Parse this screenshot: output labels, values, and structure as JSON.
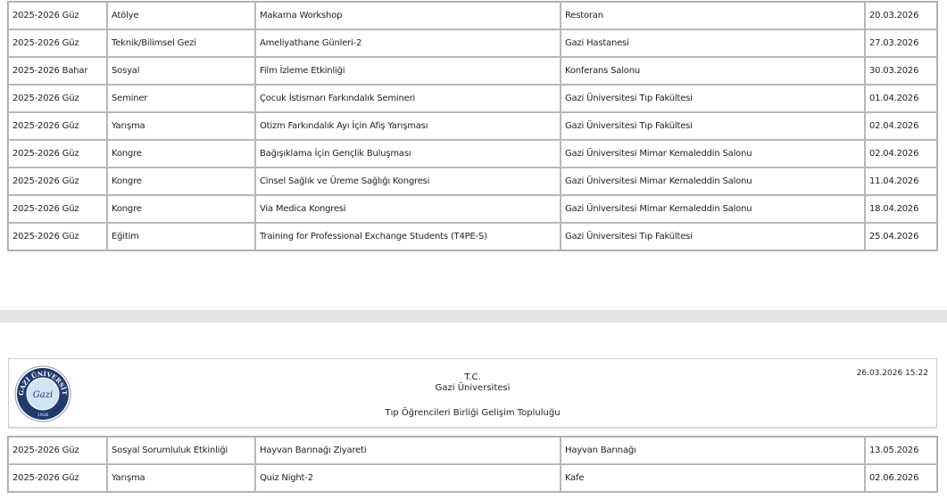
{
  "table1": {
    "rows": [
      [
        "2025-2026 Güz",
        "Atölye",
        "Makarna Workshop",
        "Restoran",
        "20.03.2026"
      ],
      [
        "2025-2026 Güz",
        "Teknik/Bilimsel Gezi",
        "Ameliyathane Günleri-2",
        "Gazi Hastanesi",
        "27.03.2026"
      ],
      [
        "2025-2026 Bahar",
        "Sosyal",
        "Film İzleme Etkinliği",
        "Konferans Salonu",
        "30.03.2026"
      ],
      [
        "2025-2026 Güz",
        "Seminer",
        "Çocuk İstismarı Farkındalık Semineri",
        "Gazi Üniversitesi Tıp Fakültesi",
        "01.04.2026"
      ],
      [
        "2025-2026 Güz",
        "Yarışma",
        "Otizm Farkındalık Ayı İçin Afiş Yarışması",
        "Gazi Üniversitesi Tıp Fakültesi",
        "02.04.2026"
      ],
      [
        "2025-2026 Güz",
        "Kongre",
        "Bağışıklama İçin Gençlik Buluşması",
        "Gazi Üniversitesi Mimar Kemaleddin Salonu",
        "02.04.2026"
      ],
      [
        "2025-2026 Güz",
        "Kongre",
        "Cinsel Sağlık ve Üreme Sağlığı Kongresi",
        "Gazi Üniversitesi Mimar Kemaleddin Salonu",
        "11.04.2026"
      ],
      [
        "2025-2026 Güz",
        "Kongre",
        "Via Medica Kongresi",
        "Gazi Üniversitesi Mimar Kemaleddin Salonu",
        "18.04.2026"
      ],
      [
        "2025-2026 Güz",
        "Eğitim",
        "Training for Professional Exchange Students (T4PE-S)",
        "Gazi Üniversitesi Tıp Fakültesi",
        "25.04.2026"
      ]
    ]
  },
  "header": {
    "line1": "T.C.",
    "line2": "Gazi Üniversitesi",
    "line3": "Tıp Öğrencileri Birliği Gelişim Topluluğu",
    "timestamp": "26.03.2026 15:22",
    "logo": {
      "text": "GAZİ ÜNİVERSİTESİ",
      "year": "1926",
      "signature": "Gazi",
      "colors": [
        "#1f3a6e",
        "#cfe3f5"
      ]
    }
  },
  "table2": {
    "rows": [
      [
        "2025-2026 Güz",
        "Sosyal Sorumluluk Etkinliği",
        "Hayvan Barınağı Ziyareti",
        "Hayvan Barınağı",
        "13.05.2026"
      ],
      [
        "2025-2026 Güz",
        "Yarışma",
        "Quiz Night-2",
        "Kafe",
        "02.06.2026"
      ]
    ]
  }
}
